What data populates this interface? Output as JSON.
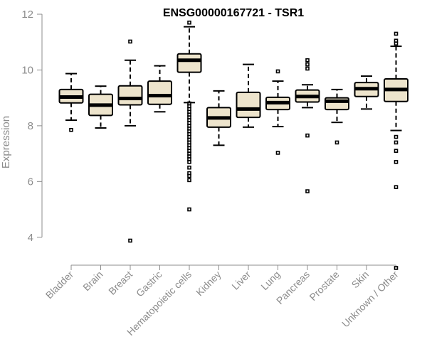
{
  "chart_data": {
    "type": "boxplot",
    "title": "ENSG00000167721 - TSR1",
    "xlabel": "",
    "ylabel": "Expression",
    "ylim": [
      3,
      12
    ],
    "yticks": [
      4,
      6,
      8,
      10,
      12
    ],
    "box_fill": "#ede4cc",
    "categories": [
      "Bladder",
      "Brain",
      "Breast",
      "Gastric",
      "Hematopoietic cells",
      "Kidney",
      "Liver",
      "Lung",
      "Pancreas",
      "Prostate",
      "Skin",
      "Unknown / Other"
    ],
    "boxes": [
      {
        "name": "Bladder",
        "whisker_low": 8.2,
        "q1": 8.82,
        "median": 9.03,
        "q3": 9.3,
        "whisker_high": 9.87,
        "outliers": [
          7.85
        ]
      },
      {
        "name": "Brain",
        "whisker_low": 7.92,
        "q1": 8.37,
        "median": 8.74,
        "q3": 9.13,
        "whisker_high": 9.42,
        "outliers": []
      },
      {
        "name": "Breast",
        "whisker_low": 8.0,
        "q1": 8.75,
        "median": 8.98,
        "q3": 9.43,
        "whisker_high": 10.35,
        "outliers": [
          11.02,
          3.88
        ]
      },
      {
        "name": "Gastric",
        "whisker_low": 8.5,
        "q1": 8.77,
        "median": 9.08,
        "q3": 9.6,
        "whisker_high": 10.15,
        "outliers": []
      },
      {
        "name": "Hematopoietic cells",
        "whisker_low": 8.83,
        "q1": 9.92,
        "median": 10.35,
        "q3": 10.58,
        "whisker_high": 11.55,
        "outliers": [
          11.7,
          8.8,
          8.7,
          8.6,
          8.5,
          8.4,
          8.3,
          8.2,
          8.1,
          8.0,
          7.9,
          7.8,
          7.7,
          7.6,
          7.5,
          7.4,
          7.3,
          7.2,
          7.1,
          7.0,
          6.9,
          6.8,
          6.7,
          6.5,
          6.3,
          6.2,
          6.05,
          5.0
        ]
      },
      {
        "name": "Kidney",
        "whisker_low": 7.3,
        "q1": 7.95,
        "median": 8.28,
        "q3": 8.65,
        "whisker_high": 9.25,
        "outliers": []
      },
      {
        "name": "Liver",
        "whisker_low": 7.95,
        "q1": 8.3,
        "median": 8.6,
        "q3": 9.2,
        "whisker_high": 10.2,
        "outliers": []
      },
      {
        "name": "Lung",
        "whisker_low": 7.97,
        "q1": 8.58,
        "median": 8.83,
        "q3": 9.02,
        "whisker_high": 9.6,
        "outliers": [
          9.95,
          7.03
        ]
      },
      {
        "name": "Pancreas",
        "whisker_low": 8.65,
        "q1": 8.85,
        "median": 9.05,
        "q3": 9.28,
        "whisker_high": 9.47,
        "outliers": [
          10.35,
          10.2,
          10.05,
          7.65,
          5.65
        ]
      },
      {
        "name": "Prostate",
        "whisker_low": 8.12,
        "q1": 8.58,
        "median": 8.88,
        "q3": 9.0,
        "whisker_high": 9.3,
        "outliers": [
          7.4
        ]
      },
      {
        "name": "Skin",
        "whisker_low": 8.6,
        "q1": 9.05,
        "median": 9.33,
        "q3": 9.55,
        "whisker_high": 9.78,
        "outliers": []
      },
      {
        "name": "Unknown / Other",
        "whisker_low": 7.83,
        "q1": 8.87,
        "median": 9.3,
        "q3": 9.68,
        "whisker_high": 10.85,
        "outliers": [
          11.3,
          11.05,
          10.95,
          7.6,
          7.4,
          7.1,
          6.7,
          5.8,
          2.9
        ]
      }
    ]
  }
}
